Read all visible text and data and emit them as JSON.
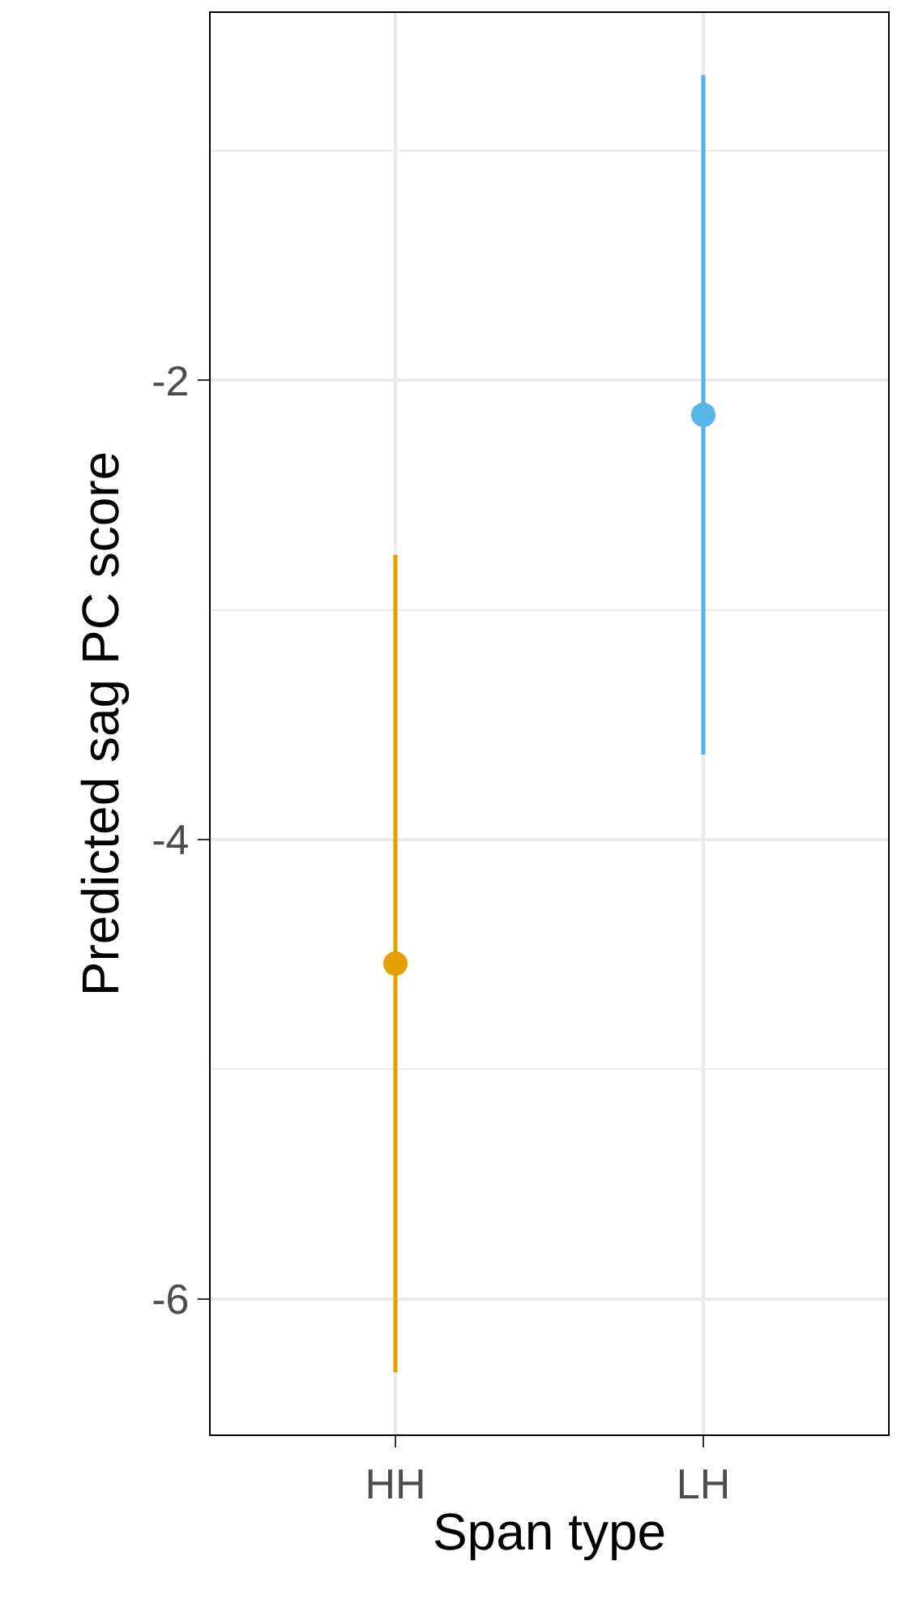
{
  "chart_data": {
    "type": "scatter",
    "xlabel": "Span type",
    "ylabel": "Predicted sag PC score",
    "categories": [
      "HH",
      "LH"
    ],
    "values": [
      -4.54,
      -2.15
    ],
    "colors": [
      "#e69f00",
      "#56b4e9"
    ],
    "errors": [
      [
        -6.32,
        -2.76
      ],
      [
        -3.63,
        -0.67
      ]
    ],
    "ylim": [
      -6.59,
      -0.4
    ],
    "yticks": [
      -6,
      {
        "value": -5,
        "label": null
      },
      -4,
      {
        "value": -3,
        "label": null
      },
      -2,
      {
        "value": -1,
        "label": null
      }
    ],
    "grid": true,
    "legend": false,
    "marker": "circle"
  }
}
